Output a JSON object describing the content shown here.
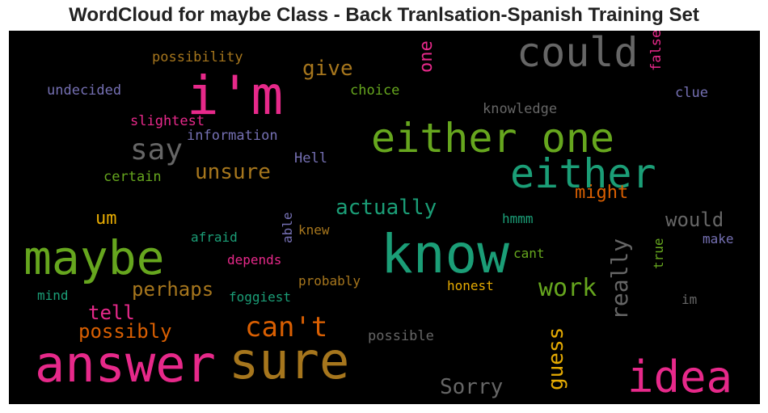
{
  "title": "WordCloud for maybe Class - Back Tranlsation-Spanish Training Set",
  "colors": {
    "background": "#000000",
    "pink": "#e7298a",
    "green": "#66a61e",
    "teal": "#1b9e77",
    "orange": "#d95f02",
    "gold": "#e6ab02",
    "brown": "#a6761d",
    "gray": "#666666",
    "purple": "#7570b3"
  },
  "words": [
    {
      "text": "i'm",
      "color": "pink"
    },
    {
      "text": "could",
      "color": "gray"
    },
    {
      "text": "either one",
      "color": "green"
    },
    {
      "text": "either",
      "color": "teal"
    },
    {
      "text": "know",
      "color": "teal"
    },
    {
      "text": "maybe",
      "color": "green"
    },
    {
      "text": "answer",
      "color": "pink"
    },
    {
      "text": "sure",
      "color": "brown"
    },
    {
      "text": "idea",
      "color": "pink"
    },
    {
      "text": "say",
      "color": "gray"
    },
    {
      "text": "can't",
      "color": "orange"
    },
    {
      "text": "work",
      "color": "green"
    },
    {
      "text": "unsure",
      "color": "brown"
    },
    {
      "text": "actually",
      "color": "teal"
    },
    {
      "text": "perhaps",
      "color": "brown"
    },
    {
      "text": "possibly",
      "color": "orange"
    },
    {
      "text": "really",
      "color": "gray"
    },
    {
      "text": "guess",
      "color": "gold"
    },
    {
      "text": "Sorry",
      "color": "gray"
    },
    {
      "text": "give",
      "color": "brown"
    },
    {
      "text": "one",
      "color": "pink"
    },
    {
      "text": "tell",
      "color": "pink"
    },
    {
      "text": "might",
      "color": "orange"
    },
    {
      "text": "would",
      "color": "gray"
    },
    {
      "text": "um",
      "color": "gold"
    },
    {
      "text": "possibility",
      "color": "brown"
    },
    {
      "text": "undecided",
      "color": "purple"
    },
    {
      "text": "choice",
      "color": "green"
    },
    {
      "text": "false",
      "color": "pink"
    },
    {
      "text": "clue",
      "color": "purple"
    },
    {
      "text": "knowledge",
      "color": "gray"
    },
    {
      "text": "slightest",
      "color": "pink"
    },
    {
      "text": "information",
      "color": "purple"
    },
    {
      "text": "Hell",
      "color": "purple"
    },
    {
      "text": "certain",
      "color": "green"
    },
    {
      "text": "hmmm",
      "color": "teal"
    },
    {
      "text": "able",
      "color": "purple"
    },
    {
      "text": "knew",
      "color": "brown"
    },
    {
      "text": "afraid",
      "color": "teal"
    },
    {
      "text": "true",
      "color": "green"
    },
    {
      "text": "make",
      "color": "purple"
    },
    {
      "text": "depends",
      "color": "pink"
    },
    {
      "text": "cant",
      "color": "green"
    },
    {
      "text": "probably",
      "color": "brown"
    },
    {
      "text": "honest",
      "color": "gold"
    },
    {
      "text": "mind",
      "color": "teal"
    },
    {
      "text": "foggiest",
      "color": "teal"
    },
    {
      "text": "im",
      "color": "gray"
    },
    {
      "text": "possible",
      "color": "gray"
    }
  ]
}
